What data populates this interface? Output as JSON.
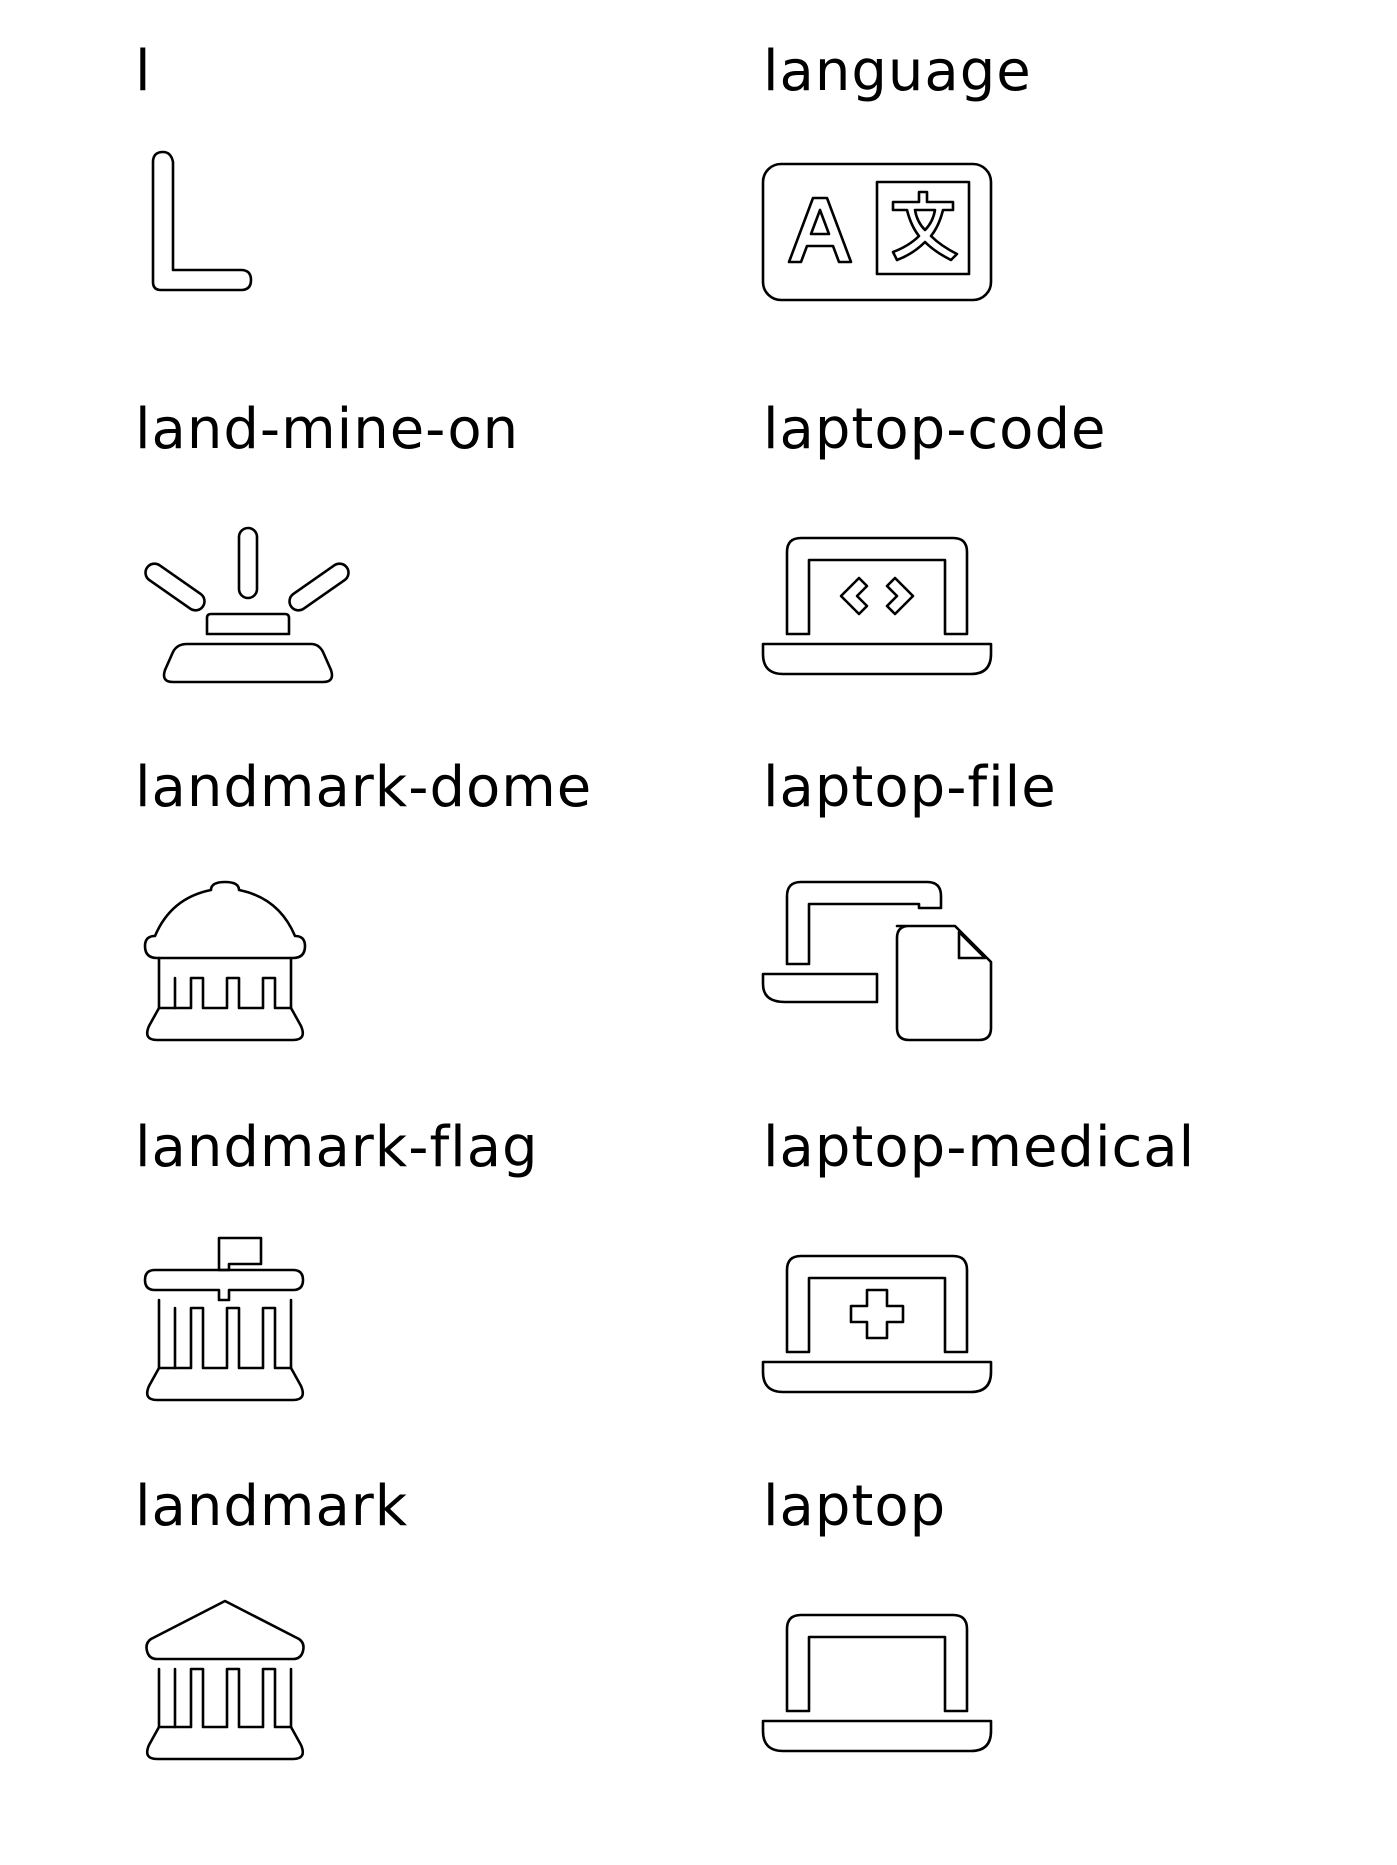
{
  "icons": [
    {
      "label": "l",
      "icon": "letter-l-icon"
    },
    {
      "label": "language",
      "icon": "language-icon"
    },
    {
      "label": "land-mine-on",
      "icon": "land-mine-on-icon"
    },
    {
      "label": "laptop-code",
      "icon": "laptop-code-icon"
    },
    {
      "label": "landmark-dome",
      "icon": "landmark-dome-icon"
    },
    {
      "label": "laptop-file",
      "icon": "laptop-file-icon"
    },
    {
      "label": "landmark-flag",
      "icon": "landmark-flag-icon"
    },
    {
      "label": "laptop-medical",
      "icon": "laptop-medical-icon"
    },
    {
      "label": "landmark",
      "icon": "landmark-icon"
    },
    {
      "label": "laptop",
      "icon": "laptop-icon"
    }
  ],
  "colors": {
    "background": "#ffffff",
    "foreground": "#000000"
  }
}
